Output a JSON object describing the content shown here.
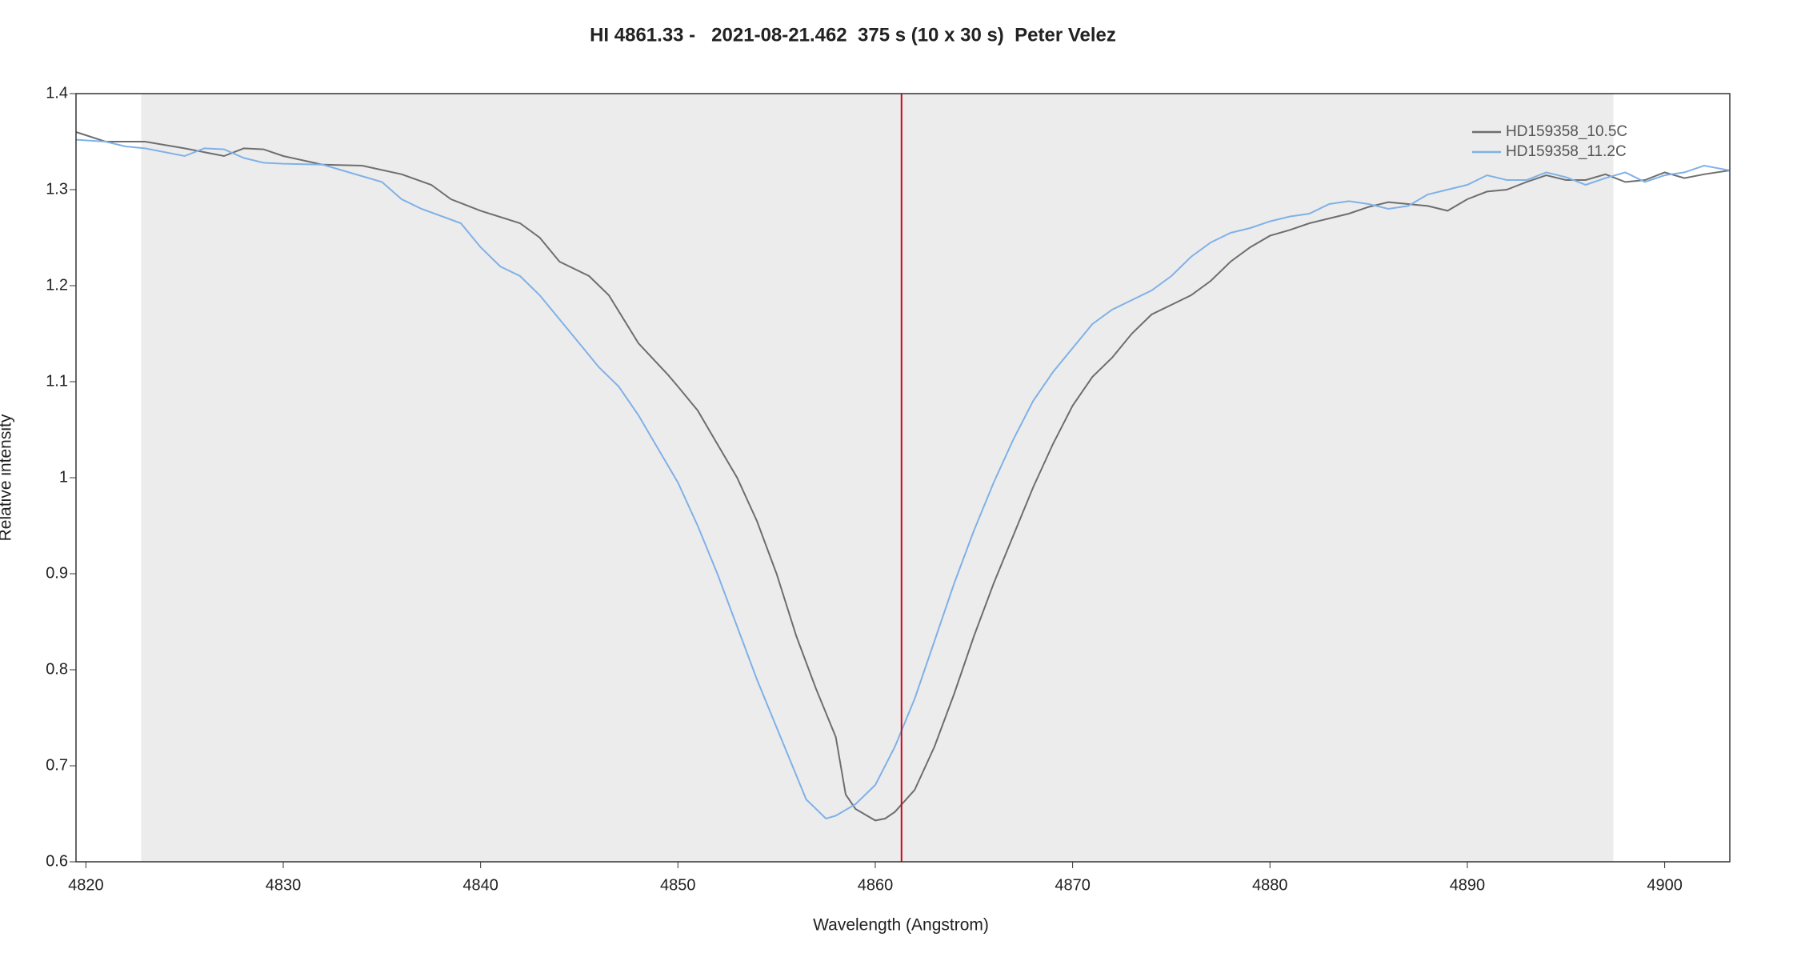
{
  "chart_data": {
    "type": "line",
    "title": "HI 4861.33 -   2021-08-21.462  375 s (10 x 30 s)  Peter Velez",
    "x_label": "Wavelength (Angstrom)",
    "y_label": "Relative intensity",
    "xlim": [
      4819.5,
      4903.3
    ],
    "ylim": [
      0.6,
      1.4
    ],
    "xticks": [
      4820,
      4830,
      4840,
      4850,
      4860,
      4870,
      4880,
      4890,
      4900
    ],
    "yticks": [
      0.6,
      0.7,
      0.8,
      0.9,
      1,
      1.1,
      1.2,
      1.3,
      1.4
    ],
    "shaded_region": [
      4822.8,
      4897.4
    ],
    "shaded_color": "#ececec",
    "reference_line": 4861.33,
    "reference_color": "#d0021b",
    "legend": "upper right",
    "series": [
      {
        "name": "HD159358_10.5C",
        "color": "#6e6e6e",
        "x": [
          4819.5,
          4821,
          4822,
          4823,
          4825,
          4827,
          4828,
          4829,
          4830,
          4832,
          4834,
          4836,
          4837.5,
          4838.5,
          4840,
          4842,
          4843,
          4844,
          4845.5,
          4846.5,
          4848,
          4849.5,
          4850,
          4851,
          4852,
          4853,
          4854,
          4855,
          4856,
          4857,
          4858,
          4858.5,
          4859,
          4860,
          4860.5,
          4861,
          4862,
          4863,
          4864,
          4865,
          4866,
          4867,
          4868,
          4869,
          4870,
          4871,
          4872,
          4873,
          4874,
          4875,
          4876,
          4877,
          4878,
          4879,
          4880,
          4881,
          4882,
          4883,
          4884,
          4885,
          4886,
          4887,
          4888,
          4889,
          4890,
          4891,
          4892,
          4893,
          4894,
          4895,
          4896,
          4897,
          4898,
          4899,
          4900,
          4901,
          4902,
          4903.3
        ],
        "values": [
          1.36,
          1.35,
          1.35,
          1.35,
          1.343,
          1.335,
          1.343,
          1.342,
          1.335,
          1.326,
          1.325,
          1.316,
          1.305,
          1.29,
          1.278,
          1.265,
          1.25,
          1.225,
          1.21,
          1.19,
          1.14,
          1.107,
          1.095,
          1.07,
          1.035,
          1.0,
          0.955,
          0.9,
          0.835,
          0.78,
          0.73,
          0.67,
          0.655,
          0.643,
          0.645,
          0.652,
          0.675,
          0.72,
          0.775,
          0.835,
          0.89,
          0.94,
          0.99,
          1.035,
          1.075,
          1.105,
          1.125,
          1.15,
          1.17,
          1.18,
          1.19,
          1.205,
          1.225,
          1.24,
          1.252,
          1.258,
          1.265,
          1.27,
          1.275,
          1.282,
          1.287,
          1.285,
          1.283,
          1.278,
          1.29,
          1.298,
          1.3,
          1.308,
          1.315,
          1.31,
          1.31,
          1.316,
          1.308,
          1.31,
          1.318,
          1.312,
          1.316,
          1.32
        ]
      },
      {
        "name": "HD159358_11.2C",
        "color": "#7fb1e8",
        "x": [
          4819.5,
          4821,
          4822,
          4823,
          4825,
          4826,
          4827,
          4828,
          4829,
          4830,
          4832,
          4833,
          4835,
          4836,
          4837,
          4839,
          4840,
          4841,
          4842,
          4843,
          4844,
          4845,
          4846,
          4847,
          4848,
          4849,
          4850,
          4851,
          4852,
          4853,
          4854,
          4855,
          4856,
          4856.5,
          4857.5,
          4858,
          4859,
          4860,
          4861,
          4862,
          4863,
          4864,
          4865,
          4866,
          4867,
          4868,
          4869,
          4870,
          4871,
          4872,
          4873,
          4874,
          4875,
          4876,
          4877,
          4878,
          4879,
          4880,
          4881,
          4882,
          4883,
          4884,
          4885,
          4886,
          4887,
          4888,
          4889,
          4890,
          4891,
          4892,
          4893,
          4894,
          4895,
          4896,
          4897,
          4898,
          4899,
          4900,
          4901,
          4902,
          4903.3
        ],
        "values": [
          1.352,
          1.35,
          1.345,
          1.343,
          1.335,
          1.343,
          1.342,
          1.333,
          1.328,
          1.327,
          1.326,
          1.32,
          1.308,
          1.29,
          1.28,
          1.265,
          1.24,
          1.22,
          1.21,
          1.19,
          1.165,
          1.14,
          1.115,
          1.095,
          1.065,
          1.03,
          0.995,
          0.95,
          0.9,
          0.845,
          0.79,
          0.74,
          0.69,
          0.665,
          0.645,
          0.648,
          0.66,
          0.68,
          0.72,
          0.77,
          0.83,
          0.89,
          0.945,
          0.995,
          1.04,
          1.08,
          1.11,
          1.135,
          1.16,
          1.175,
          1.185,
          1.195,
          1.21,
          1.23,
          1.245,
          1.255,
          1.26,
          1.267,
          1.272,
          1.275,
          1.285,
          1.288,
          1.285,
          1.28,
          1.283,
          1.295,
          1.3,
          1.305,
          1.315,
          1.31,
          1.31,
          1.318,
          1.313,
          1.305,
          1.312,
          1.318,
          1.308,
          1.315,
          1.318,
          1.325,
          1.32
        ]
      }
    ]
  }
}
